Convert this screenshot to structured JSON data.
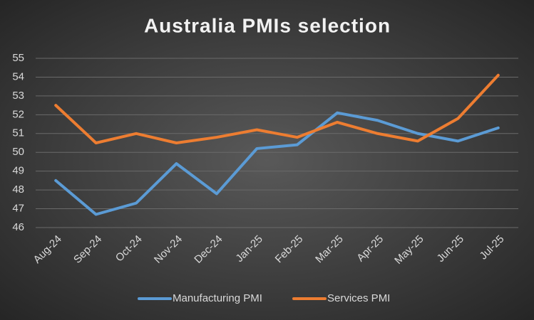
{
  "chart_data": {
    "type": "line",
    "title": "Australia PMIs selection",
    "categories": [
      "Aug-24",
      "Sep-24",
      "Oct-24",
      "Nov-24",
      "Dec-24",
      "Jan-25",
      "Feb-25",
      "Mar-25",
      "Apr-25",
      "May-25",
      "Jun-25",
      "Jul-25"
    ],
    "series": [
      {
        "name": "Manufacturing PMI",
        "color": "#5b9bd5",
        "values": [
          48.5,
          46.7,
          47.3,
          49.4,
          47.8,
          50.2,
          50.4,
          52.1,
          51.7,
          51.0,
          50.6,
          51.3
        ]
      },
      {
        "name": "Services PMI",
        "color": "#ed7d31",
        "values": [
          52.5,
          50.5,
          51.0,
          50.5,
          50.8,
          51.2,
          50.8,
          51.6,
          51.0,
          50.6,
          51.8,
          54.1
        ]
      }
    ],
    "ylim": [
      46,
      55
    ],
    "yticks": [
      46,
      47,
      48,
      49,
      50,
      51,
      52,
      53,
      54,
      55
    ],
    "grid": true,
    "legend": "bottom"
  }
}
